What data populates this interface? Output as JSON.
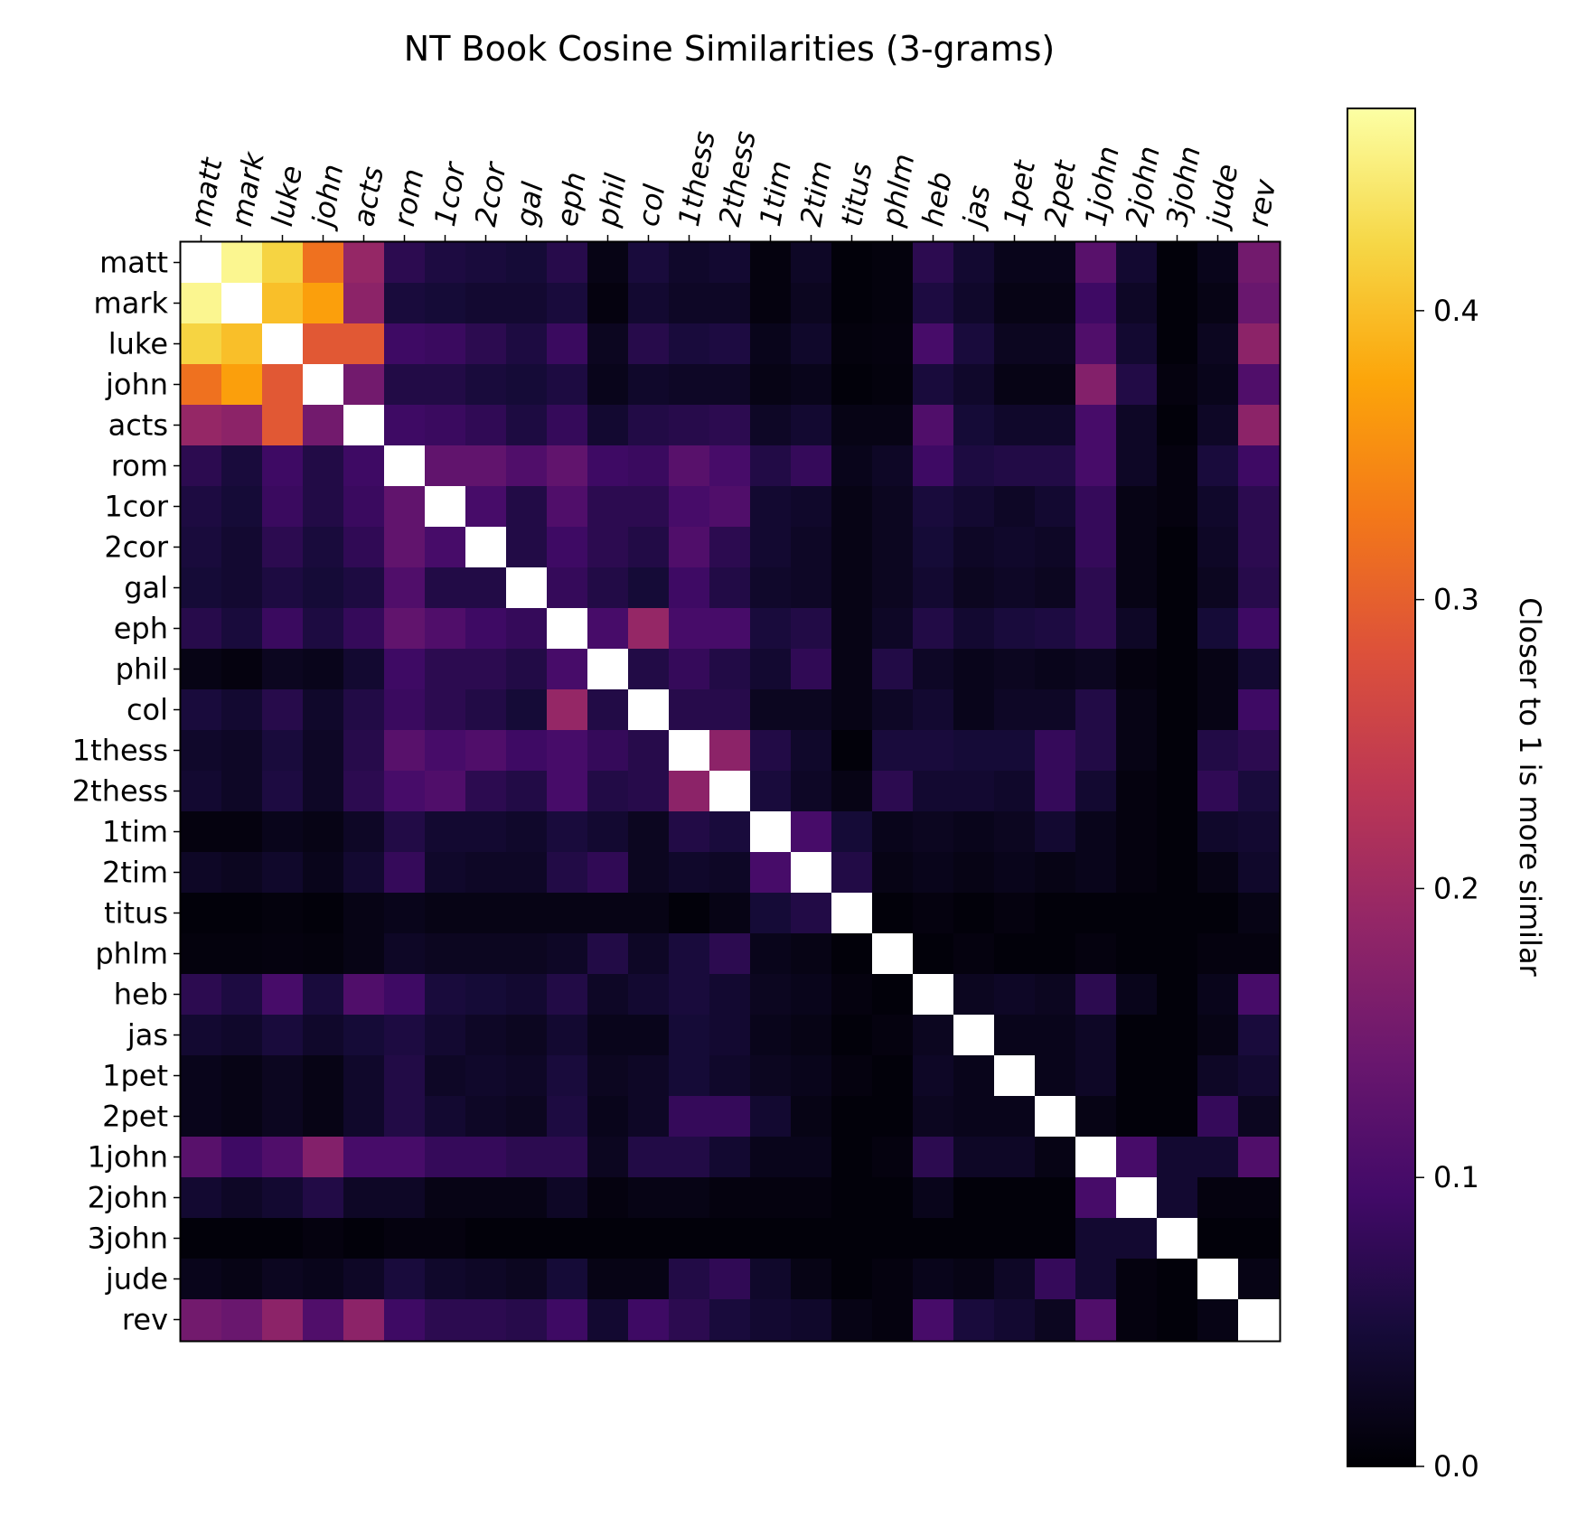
{
  "chart_data": {
    "type": "heatmap",
    "title": "NT Book Cosine Similarities (3-grams)",
    "x_labels": [
      "matt",
      "mark",
      "luke",
      "john",
      "acts",
      "rom",
      "1cor",
      "2cor",
      "gal",
      "eph",
      "phil",
      "col",
      "1thess",
      "2thess",
      "1tim",
      "2tim",
      "titus",
      "phlm",
      "heb",
      "jas",
      "1pet",
      "2pet",
      "1john",
      "2john",
      "3john",
      "jude",
      "rev"
    ],
    "y_labels": [
      "matt",
      "mark",
      "luke",
      "john",
      "acts",
      "rom",
      "1cor",
      "2cor",
      "gal",
      "eph",
      "phil",
      "col",
      "1thess",
      "2thess",
      "1tim",
      "2tim",
      "titus",
      "phlm",
      "heb",
      "jas",
      "1pet",
      "2pet",
      "1john",
      "2john",
      "3john",
      "jude",
      "rev"
    ],
    "diagonal_color": "#ffffff",
    "colormap": "inferno",
    "colorbar": {
      "label": "Closer to 1 is more similar",
      "vmin": 0.0,
      "vmax": 0.47,
      "ticks": [
        {
          "value": 0.0,
          "label": "0.0"
        },
        {
          "value": 0.1,
          "label": "0.1"
        },
        {
          "value": 0.2,
          "label": "0.2"
        },
        {
          "value": 0.3,
          "label": "0.3"
        },
        {
          "value": 0.4,
          "label": "0.4"
        }
      ]
    },
    "values": [
      [
        1.0,
        0.46,
        0.42,
        0.32,
        0.19,
        0.07,
        0.055,
        0.05,
        0.045,
        0.065,
        0.015,
        0.05,
        0.035,
        0.04,
        0.01,
        0.03,
        0.005,
        0.008,
        0.07,
        0.04,
        0.02,
        0.02,
        0.12,
        0.04,
        0.005,
        0.02,
        0.15
      ],
      [
        0.46,
        1.0,
        0.4,
        0.37,
        0.18,
        0.05,
        0.045,
        0.04,
        0.04,
        0.05,
        0.01,
        0.04,
        0.03,
        0.03,
        0.01,
        0.025,
        0.005,
        0.008,
        0.055,
        0.035,
        0.015,
        0.015,
        0.09,
        0.03,
        0.005,
        0.015,
        0.14
      ],
      [
        0.42,
        0.4,
        1.0,
        0.29,
        0.29,
        0.09,
        0.085,
        0.07,
        0.055,
        0.085,
        0.025,
        0.065,
        0.05,
        0.055,
        0.02,
        0.035,
        0.008,
        0.01,
        0.1,
        0.05,
        0.025,
        0.025,
        0.11,
        0.04,
        0.005,
        0.025,
        0.18
      ],
      [
        0.32,
        0.37,
        0.29,
        1.0,
        0.15,
        0.06,
        0.06,
        0.05,
        0.045,
        0.055,
        0.02,
        0.035,
        0.03,
        0.03,
        0.015,
        0.02,
        0.005,
        0.008,
        0.05,
        0.035,
        0.015,
        0.015,
        0.17,
        0.06,
        0.01,
        0.02,
        0.11
      ],
      [
        0.19,
        0.18,
        0.29,
        0.15,
        1.0,
        0.09,
        0.085,
        0.075,
        0.055,
        0.08,
        0.04,
        0.06,
        0.065,
        0.07,
        0.03,
        0.04,
        0.015,
        0.015,
        0.11,
        0.045,
        0.035,
        0.035,
        0.1,
        0.03,
        0.005,
        0.03,
        0.18
      ],
      [
        0.07,
        0.05,
        0.09,
        0.06,
        0.09,
        1.0,
        0.13,
        0.13,
        0.11,
        0.13,
        0.09,
        0.085,
        0.12,
        0.1,
        0.06,
        0.08,
        0.02,
        0.03,
        0.09,
        0.055,
        0.06,
        0.06,
        0.1,
        0.03,
        0.01,
        0.05,
        0.09
      ],
      [
        0.055,
        0.045,
        0.085,
        0.06,
        0.085,
        0.13,
        1.0,
        0.1,
        0.06,
        0.11,
        0.07,
        0.07,
        0.1,
        0.11,
        0.04,
        0.035,
        0.015,
        0.025,
        0.05,
        0.04,
        0.03,
        0.04,
        0.08,
        0.015,
        0.01,
        0.035,
        0.07
      ],
      [
        0.05,
        0.04,
        0.07,
        0.05,
        0.075,
        0.13,
        0.1,
        1.0,
        0.06,
        0.09,
        0.07,
        0.06,
        0.11,
        0.07,
        0.04,
        0.03,
        0.015,
        0.025,
        0.045,
        0.03,
        0.035,
        0.03,
        0.08,
        0.015,
        0.005,
        0.03,
        0.07
      ],
      [
        0.045,
        0.04,
        0.055,
        0.045,
        0.055,
        0.11,
        0.06,
        0.06,
        1.0,
        0.08,
        0.06,
        0.045,
        0.09,
        0.06,
        0.035,
        0.03,
        0.015,
        0.025,
        0.04,
        0.025,
        0.03,
        0.025,
        0.07,
        0.015,
        0.005,
        0.025,
        0.065
      ],
      [
        0.065,
        0.05,
        0.085,
        0.055,
        0.08,
        0.13,
        0.11,
        0.09,
        0.08,
        1.0,
        0.1,
        0.19,
        0.1,
        0.1,
        0.05,
        0.06,
        0.015,
        0.03,
        0.06,
        0.04,
        0.05,
        0.055,
        0.07,
        0.03,
        0.005,
        0.045,
        0.09
      ],
      [
        0.015,
        0.01,
        0.025,
        0.02,
        0.04,
        0.09,
        0.07,
        0.07,
        0.06,
        0.1,
        1.0,
        0.06,
        0.08,
        0.06,
        0.04,
        0.075,
        0.015,
        0.06,
        0.03,
        0.02,
        0.025,
        0.02,
        0.025,
        0.01,
        0.005,
        0.015,
        0.04
      ],
      [
        0.05,
        0.04,
        0.065,
        0.035,
        0.06,
        0.085,
        0.07,
        0.06,
        0.045,
        0.19,
        0.06,
        1.0,
        0.065,
        0.065,
        0.025,
        0.025,
        0.015,
        0.03,
        0.04,
        0.02,
        0.03,
        0.03,
        0.06,
        0.015,
        0.005,
        0.015,
        0.09
      ],
      [
        0.035,
        0.03,
        0.05,
        0.03,
        0.065,
        0.12,
        0.1,
        0.11,
        0.09,
        0.1,
        0.08,
        0.065,
        1.0,
        0.18,
        0.06,
        0.035,
        0.005,
        0.05,
        0.05,
        0.045,
        0.045,
        0.08,
        0.06,
        0.015,
        0.005,
        0.06,
        0.07
      ],
      [
        0.04,
        0.03,
        0.055,
        0.03,
        0.07,
        0.1,
        0.11,
        0.07,
        0.06,
        0.1,
        0.06,
        0.065,
        0.18,
        1.0,
        0.05,
        0.03,
        0.015,
        0.07,
        0.04,
        0.04,
        0.035,
        0.08,
        0.04,
        0.01,
        0.005,
        0.075,
        0.05
      ],
      [
        0.01,
        0.01,
        0.02,
        0.015,
        0.03,
        0.06,
        0.04,
        0.04,
        0.035,
        0.05,
        0.04,
        0.025,
        0.06,
        0.05,
        1.0,
        0.1,
        0.045,
        0.02,
        0.025,
        0.02,
        0.025,
        0.04,
        0.02,
        0.01,
        0.005,
        0.035,
        0.04
      ],
      [
        0.03,
        0.025,
        0.035,
        0.02,
        0.04,
        0.08,
        0.035,
        0.03,
        0.03,
        0.06,
        0.075,
        0.025,
        0.035,
        0.03,
        0.1,
        1.0,
        0.06,
        0.015,
        0.02,
        0.015,
        0.02,
        0.015,
        0.02,
        0.01,
        0.005,
        0.015,
        0.035
      ],
      [
        0.005,
        0.005,
        0.008,
        0.005,
        0.015,
        0.02,
        0.015,
        0.015,
        0.015,
        0.015,
        0.015,
        0.015,
        0.005,
        0.015,
        0.045,
        0.06,
        1.0,
        0.005,
        0.01,
        0.005,
        0.01,
        0.005,
        0.005,
        0.005,
        0.005,
        0.005,
        0.015
      ],
      [
        0.008,
        0.008,
        0.01,
        0.008,
        0.015,
        0.03,
        0.025,
        0.025,
        0.025,
        0.03,
        0.06,
        0.03,
        0.05,
        0.07,
        0.02,
        0.015,
        0.005,
        1.0,
        0.005,
        0.01,
        0.005,
        0.005,
        0.01,
        0.005,
        0.005,
        0.01,
        0.01
      ],
      [
        0.07,
        0.055,
        0.1,
        0.05,
        0.11,
        0.09,
        0.05,
        0.045,
        0.04,
        0.06,
        0.03,
        0.04,
        0.05,
        0.04,
        0.025,
        0.02,
        0.01,
        0.005,
        1.0,
        0.025,
        0.03,
        0.025,
        0.07,
        0.02,
        0.005,
        0.02,
        0.1
      ],
      [
        0.04,
        0.035,
        0.05,
        0.035,
        0.045,
        0.055,
        0.04,
        0.03,
        0.025,
        0.04,
        0.02,
        0.02,
        0.045,
        0.04,
        0.02,
        0.015,
        0.005,
        0.01,
        0.025,
        1.0,
        0.02,
        0.02,
        0.03,
        0.005,
        0.005,
        0.015,
        0.05
      ],
      [
        0.02,
        0.015,
        0.025,
        0.015,
        0.035,
        0.06,
        0.03,
        0.035,
        0.03,
        0.05,
        0.025,
        0.03,
        0.045,
        0.035,
        0.025,
        0.02,
        0.01,
        0.005,
        0.03,
        0.02,
        1.0,
        0.02,
        0.03,
        0.005,
        0.005,
        0.03,
        0.04
      ],
      [
        0.02,
        0.015,
        0.025,
        0.015,
        0.035,
        0.06,
        0.04,
        0.03,
        0.025,
        0.055,
        0.02,
        0.03,
        0.08,
        0.08,
        0.04,
        0.015,
        0.005,
        0.005,
        0.025,
        0.02,
        0.02,
        1.0,
        0.015,
        0.005,
        0.005,
        0.08,
        0.025
      ],
      [
        0.12,
        0.09,
        0.11,
        0.17,
        0.1,
        0.1,
        0.08,
        0.08,
        0.07,
        0.07,
        0.025,
        0.06,
        0.06,
        0.04,
        0.02,
        0.02,
        0.005,
        0.01,
        0.07,
        0.03,
        0.03,
        0.015,
        1.0,
        0.1,
        0.04,
        0.04,
        0.11
      ],
      [
        0.04,
        0.03,
        0.04,
        0.06,
        0.03,
        0.03,
        0.015,
        0.015,
        0.015,
        0.03,
        0.01,
        0.015,
        0.015,
        0.01,
        0.01,
        0.01,
        0.005,
        0.005,
        0.02,
        0.005,
        0.005,
        0.005,
        0.1,
        1.0,
        0.04,
        0.01,
        0.01
      ],
      [
        0.005,
        0.005,
        0.005,
        0.01,
        0.005,
        0.01,
        0.01,
        0.005,
        0.005,
        0.005,
        0.005,
        0.005,
        0.005,
        0.005,
        0.005,
        0.005,
        0.005,
        0.005,
        0.005,
        0.005,
        0.005,
        0.005,
        0.04,
        0.04,
        1.0,
        0.005,
        0.005
      ],
      [
        0.02,
        0.015,
        0.025,
        0.02,
        0.03,
        0.05,
        0.035,
        0.03,
        0.025,
        0.045,
        0.015,
        0.015,
        0.06,
        0.075,
        0.035,
        0.015,
        0.005,
        0.01,
        0.02,
        0.015,
        0.03,
        0.08,
        0.04,
        0.01,
        0.005,
        1.0,
        0.015
      ],
      [
        0.15,
        0.14,
        0.18,
        0.11,
        0.18,
        0.09,
        0.07,
        0.07,
        0.065,
        0.09,
        0.04,
        0.09,
        0.07,
        0.05,
        0.04,
        0.035,
        0.015,
        0.01,
        0.1,
        0.05,
        0.04,
        0.025,
        0.11,
        0.01,
        0.005,
        0.015,
        1.0
      ]
    ]
  }
}
